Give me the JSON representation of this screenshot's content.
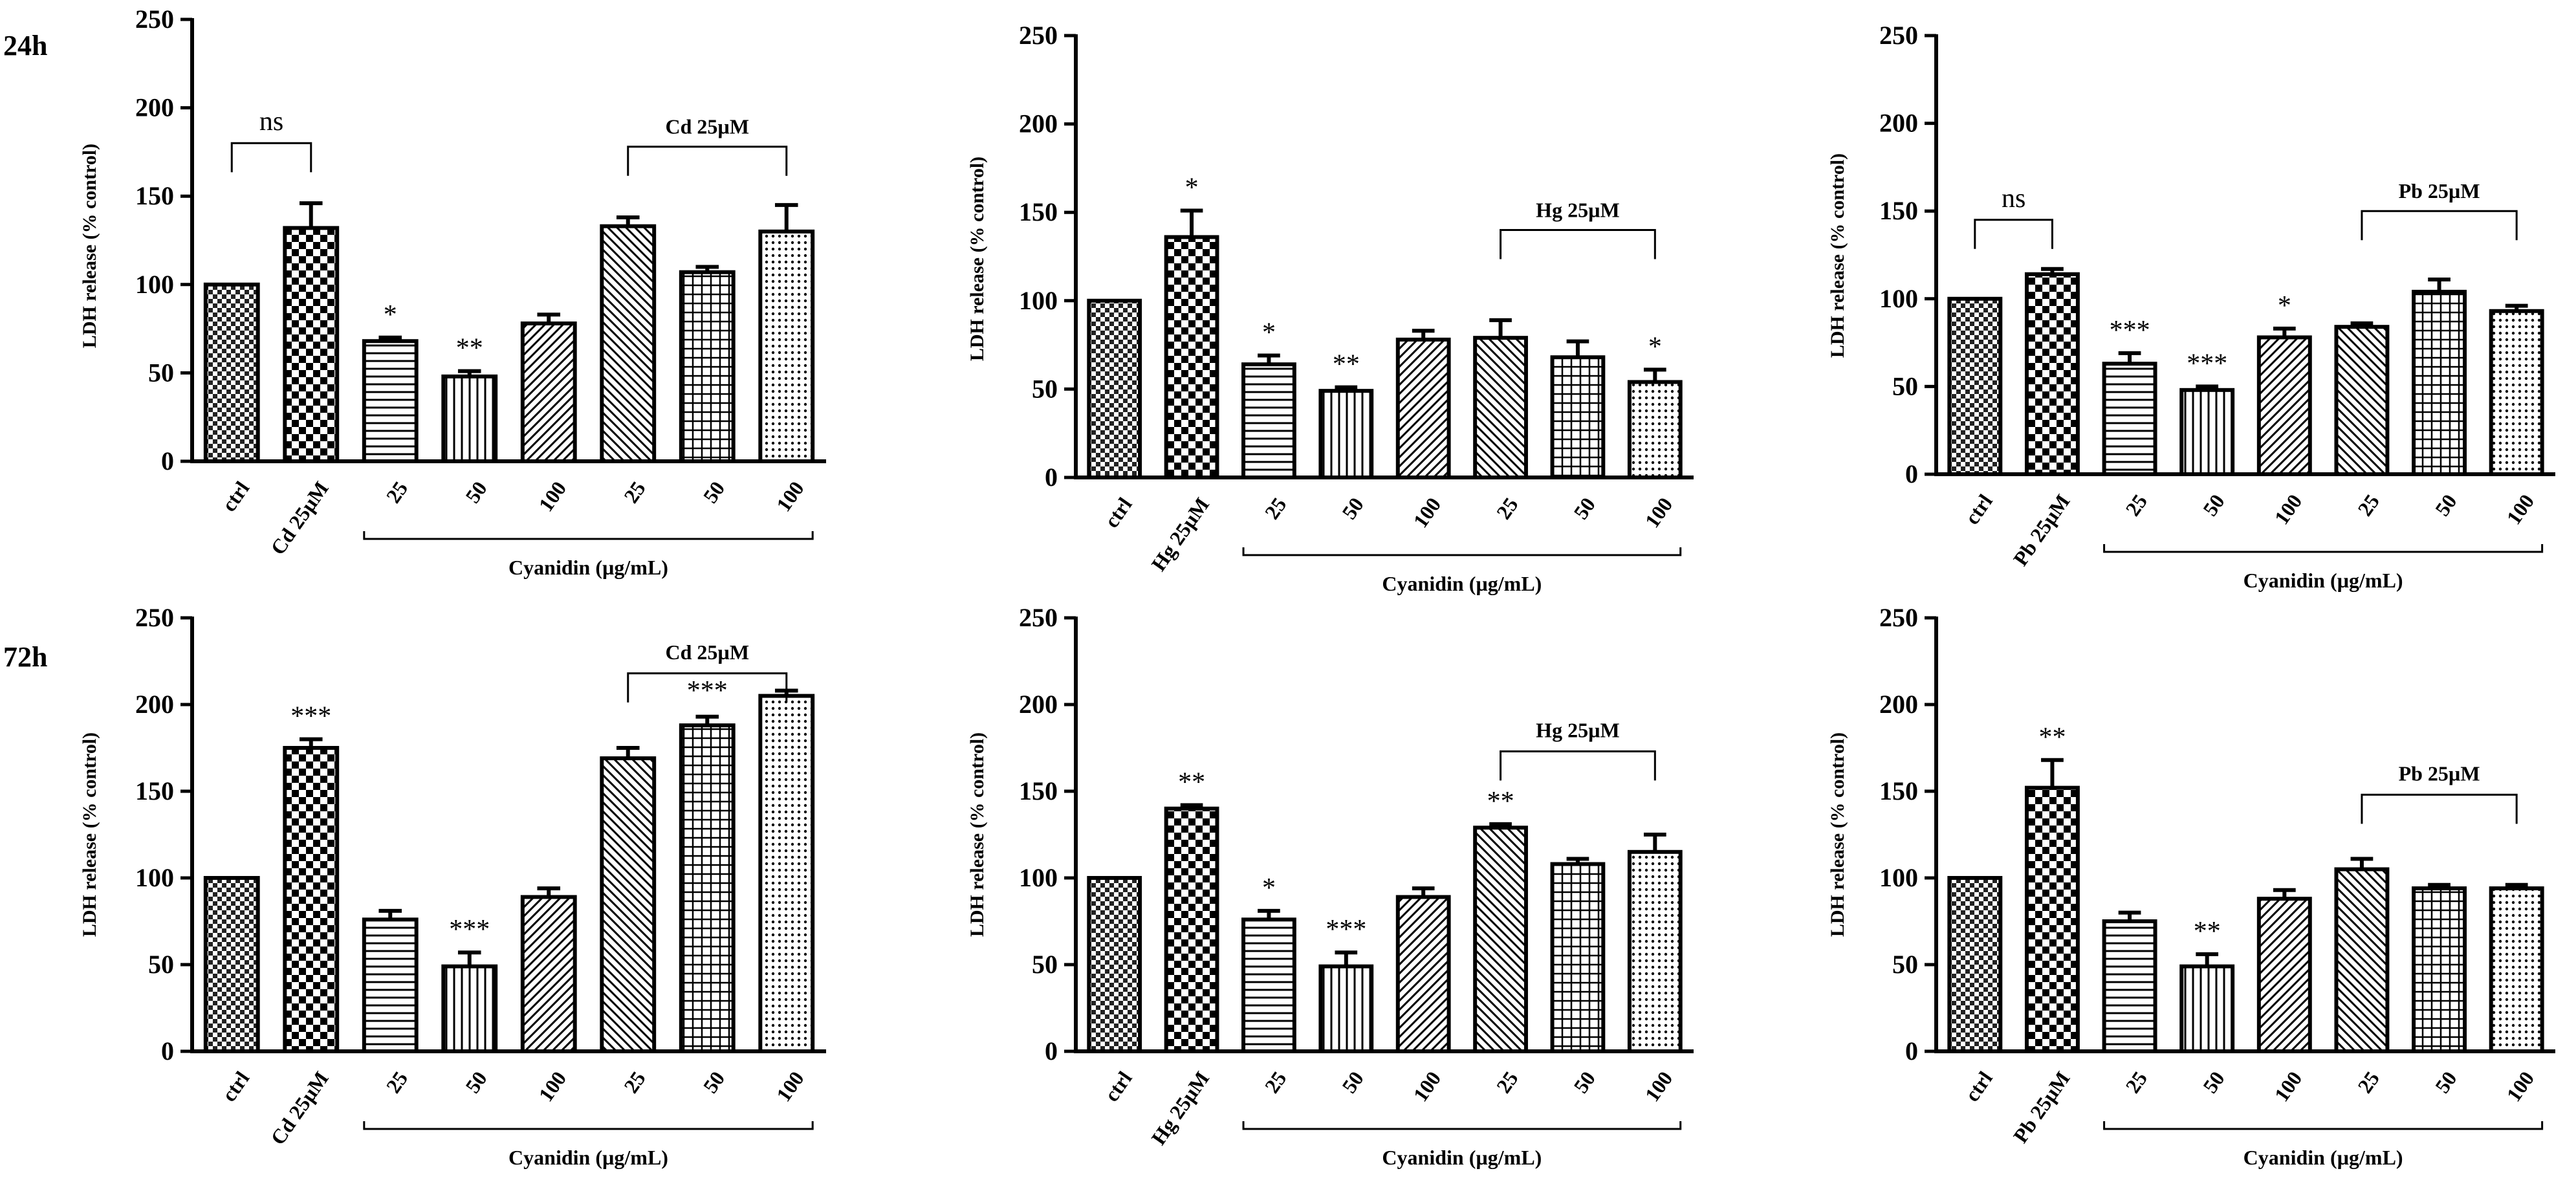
{
  "figure": {
    "row_labels": [
      "24h",
      "72h"
    ]
  },
  "chart_data": [
    {
      "type": "bar",
      "title": "",
      "ylabel": "LDH release (% control)",
      "xlabel": "Cyanidin (µg/mL)",
      "ylim": [
        0,
        250
      ],
      "yticks": [
        "0",
        "50",
        "100",
        "150",
        "200",
        "250"
      ],
      "categories": [
        "ctrl",
        "Cd 25µM",
        "25",
        "50",
        "100",
        "25",
        "50",
        "100"
      ],
      "values": [
        100,
        132,
        68,
        48,
        78,
        133,
        107,
        130
      ],
      "errors": [
        0,
        14,
        2,
        3,
        5,
        5,
        3,
        15
      ],
      "patterns": [
        "checker",
        "check2",
        "hline",
        "vline",
        "diag",
        "diag2",
        "grid",
        "dots"
      ],
      "significance": [
        "",
        "",
        "*",
        "**",
        "",
        "",
        "",
        ""
      ],
      "brackets": [
        {
          "kind": "up",
          "from": 0,
          "to": 1,
          "level": 180,
          "label": "ns"
        },
        {
          "kind": "up",
          "from": 5,
          "to": 7,
          "level": 178,
          "label": "Cd 25µM"
        }
      ]
    },
    {
      "type": "bar",
      "title": "",
      "ylabel": "LDH release (% control)",
      "xlabel": "Cyanidin (µg/mL)",
      "ylim": [
        0,
        250
      ],
      "yticks": [
        "0",
        "50",
        "100",
        "150",
        "200",
        "250"
      ],
      "categories": [
        "ctrl",
        "Hg 25µM",
        "25",
        "50",
        "100",
        "25",
        "50",
        "100"
      ],
      "values": [
        100,
        136,
        64,
        49,
        78,
        79,
        68,
        54
      ],
      "errors": [
        0,
        15,
        5,
        2,
        5,
        10,
        9,
        7
      ],
      "patterns": [
        "checker",
        "check2",
        "hline",
        "vline",
        "diag",
        "diag2",
        "grid",
        "dots"
      ],
      "significance": [
        "",
        "*",
        "*",
        "**",
        "",
        "",
        "",
        "*"
      ],
      "brackets": [
        {
          "kind": "up",
          "from": 5,
          "to": 7,
          "level": 140,
          "label": "Hg 25µM"
        }
      ]
    },
    {
      "type": "bar",
      "title": "",
      "ylabel": "LDH release (% control)",
      "xlabel": "Cyanidin (µg/mL)",
      "ylim": [
        0,
        250
      ],
      "yticks": [
        "0",
        "50",
        "100",
        "150",
        "200",
        "250"
      ],
      "categories": [
        "ctrl",
        "Pb 25µM",
        "25",
        "50",
        "100",
        "25",
        "50",
        "100"
      ],
      "values": [
        100,
        114,
        63,
        48,
        78,
        84,
        104,
        93
      ],
      "errors": [
        0,
        3,
        6,
        2,
        5,
        2,
        7,
        3
      ],
      "patterns": [
        "checker",
        "check2",
        "hline",
        "vline",
        "diag",
        "diag2",
        "grid",
        "dots"
      ],
      "significance": [
        "",
        "",
        "***",
        "***",
        "*",
        "",
        "",
        ""
      ],
      "brackets": [
        {
          "kind": "up",
          "from": 0,
          "to": 1,
          "level": 145,
          "label": "ns"
        },
        {
          "kind": "up",
          "from": 5,
          "to": 7,
          "level": 150,
          "label": "Pb 25µM"
        }
      ]
    },
    {
      "type": "bar",
      "title": "",
      "ylabel": "LDH release (% control)",
      "xlabel": "Cyanidin (µg/mL)",
      "ylim": [
        0,
        250
      ],
      "yticks": [
        "0",
        "50",
        "100",
        "150",
        "200",
        "250"
      ],
      "categories": [
        "ctrl",
        "Cd 25µM",
        "25",
        "50",
        "100",
        "25",
        "50",
        "100"
      ],
      "values": [
        100,
        175,
        76,
        49,
        89,
        169,
        188,
        205
      ],
      "errors": [
        0,
        5,
        5,
        8,
        5,
        6,
        5,
        3
      ],
      "patterns": [
        "checker",
        "check2",
        "hline",
        "vline",
        "diag",
        "diag2",
        "grid",
        "dots"
      ],
      "significance": [
        "",
        "***",
        "",
        "***",
        "",
        "",
        "",
        ""
      ],
      "brackets": [
        {
          "kind": "down",
          "from": 5,
          "to": 7,
          "level": 218,
          "label": "***",
          "label_above": "Cd 25µM"
        }
      ]
    },
    {
      "type": "bar",
      "title": "",
      "ylabel": "LDH release (% control)",
      "xlabel": "Cyanidin (µg/mL)",
      "ylim": [
        0,
        250
      ],
      "yticks": [
        "0",
        "50",
        "100",
        "150",
        "200",
        "250"
      ],
      "categories": [
        "ctrl",
        "Hg 25µM",
        "25",
        "50",
        "100",
        "25",
        "50",
        "100"
      ],
      "values": [
        100,
        140,
        76,
        49,
        89,
        129,
        108,
        115
      ],
      "errors": [
        0,
        2,
        5,
        8,
        5,
        2,
        3,
        10
      ],
      "patterns": [
        "checker",
        "check2",
        "hline",
        "vline",
        "diag",
        "diag2",
        "grid",
        "dots"
      ],
      "significance": [
        "",
        "**",
        "*",
        "***",
        "",
        "**",
        "",
        ""
      ],
      "brackets": [
        {
          "kind": "down",
          "from": 5,
          "to": 7,
          "level": 173,
          "label": "",
          "label_above": "Hg 25µM"
        }
      ]
    },
    {
      "type": "bar",
      "title": "",
      "ylabel": "LDH release (% control)",
      "xlabel": "Cyanidin (µg/mL)",
      "ylim": [
        0,
        250
      ],
      "yticks": [
        "0",
        "50",
        "100",
        "150",
        "200",
        "250"
      ],
      "categories": [
        "ctrl",
        "Pb 25µM",
        "25",
        "50",
        "100",
        "25",
        "50",
        "100"
      ],
      "values": [
        100,
        152,
        75,
        49,
        88,
        105,
        94,
        94
      ],
      "errors": [
        0,
        16,
        5,
        7,
        5,
        6,
        2,
        2
      ],
      "patterns": [
        "checker",
        "check2",
        "hline",
        "vline",
        "diag",
        "diag2",
        "grid",
        "dots"
      ],
      "significance": [
        "",
        "**",
        "",
        "**",
        "",
        "",
        "",
        ""
      ],
      "brackets": [
        {
          "kind": "down",
          "from": 5,
          "to": 7,
          "level": 148,
          "label": "",
          "label_above": "Pb 25µM"
        }
      ]
    }
  ]
}
